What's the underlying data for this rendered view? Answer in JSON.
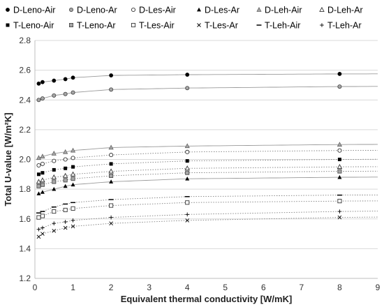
{
  "chart_data": {
    "type": "scatter",
    "xlabel": "Equivalent thermal conductivity [W/mK]",
    "ylabel": "Total U-value  [W/m²K]",
    "xlim": [
      0,
      9
    ],
    "ylim": [
      1.2,
      2.8
    ],
    "xticks": [
      "0",
      "1",
      "2",
      "3",
      "4",
      "5",
      "6",
      "7",
      "8",
      "9"
    ],
    "yticks": [
      "1.2",
      "1.4",
      "1.6",
      "1.8",
      "2.0",
      "2.2",
      "2.4",
      "2.6",
      "2.8"
    ],
    "grid": "horizontal",
    "legend_position": "top",
    "x": [
      0.1,
      0.2,
      0.5,
      0.8,
      1.0,
      2.0,
      4.0,
      8.0
    ],
    "series": [
      {
        "name": "D-Leno-Air",
        "marker": "filled-circle",
        "trend": "solid",
        "values": [
          2.51,
          2.52,
          2.53,
          2.54,
          2.55,
          2.565,
          2.57,
          2.575
        ]
      },
      {
        "name": "D-Leno-Ar",
        "marker": "gray-circle",
        "trend": "solid",
        "values": [
          2.4,
          2.41,
          2.43,
          2.44,
          2.45,
          2.47,
          2.48,
          2.49
        ]
      },
      {
        "name": "D-Les-Air",
        "marker": "open-circle",
        "trend": "dotted",
        "values": [
          1.96,
          1.97,
          1.99,
          2.0,
          2.01,
          2.03,
          2.05,
          2.06
        ]
      },
      {
        "name": "D-Les-Ar",
        "marker": "filled-triangle",
        "trend": "solid",
        "values": [
          1.77,
          1.78,
          1.8,
          1.82,
          1.83,
          1.85,
          1.87,
          1.88
        ]
      },
      {
        "name": "D-Leh-Air",
        "marker": "gray-triangle",
        "trend": "solid",
        "values": [
          2.01,
          2.02,
          2.04,
          2.05,
          2.06,
          2.08,
          2.09,
          2.1
        ]
      },
      {
        "name": "D-Leh-Ar",
        "marker": "open-triangle",
        "trend": "dotted",
        "values": [
          1.85,
          1.86,
          1.88,
          1.89,
          1.9,
          1.92,
          1.94,
          1.95
        ]
      },
      {
        "name": "T-Leno-Air",
        "marker": "filled-square",
        "trend": "dotted",
        "values": [
          1.9,
          1.91,
          1.93,
          1.94,
          1.95,
          1.97,
          1.99,
          2.0
        ]
      },
      {
        "name": "T-Leno-Ar",
        "marker": "gray-square",
        "trend": "dotted",
        "values": [
          1.82,
          1.83,
          1.85,
          1.86,
          1.87,
          1.89,
          1.91,
          1.92
        ]
      },
      {
        "name": "T-Les-Air",
        "marker": "open-square",
        "trend": "dotted",
        "values": [
          1.61,
          1.62,
          1.65,
          1.66,
          1.67,
          1.69,
          1.71,
          1.72
        ]
      },
      {
        "name": "T-Les-Ar",
        "marker": "x",
        "trend": "dotted",
        "values": [
          1.48,
          1.5,
          1.52,
          1.54,
          1.55,
          1.57,
          1.59,
          1.61
        ]
      },
      {
        "name": "T-Leh-Air",
        "marker": "dash",
        "trend": "dotted",
        "values": [
          1.64,
          1.65,
          1.68,
          1.7,
          1.71,
          1.73,
          1.75,
          1.76
        ]
      },
      {
        "name": "T-Leh-Ar",
        "marker": "plus",
        "trend": "dotted",
        "values": [
          1.53,
          1.54,
          1.57,
          1.58,
          1.59,
          1.61,
          1.63,
          1.65
        ]
      }
    ]
  }
}
